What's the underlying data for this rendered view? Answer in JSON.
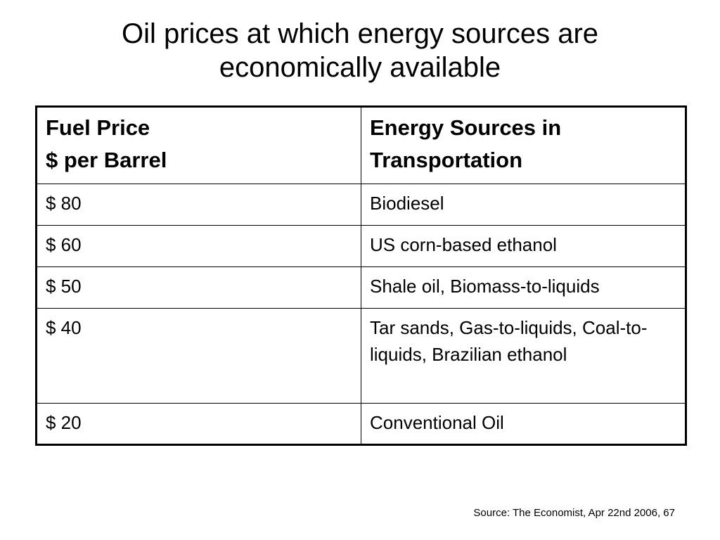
{
  "title": {
    "line1": "Oil prices at which energy sources are",
    "line2": "economically available"
  },
  "table": {
    "headers": {
      "price_line1": "Fuel Price",
      "price_line2": "$ per Barrel",
      "sources": "Energy Sources in Transportation"
    },
    "rows": [
      {
        "price": "$ 80",
        "sources": "Biodiesel"
      },
      {
        "price": "$ 60",
        "sources": "US corn-based ethanol"
      },
      {
        "price": "$ 50",
        "sources": "Shale oil, Biomass-to-liquids"
      },
      {
        "price": "$ 40",
        "sources": "Tar sands, Gas-to-liquids, Coal-to-liquids, Brazilian ethanol"
      },
      {
        "price": "$ 20",
        "sources": "Conventional Oil"
      }
    ]
  },
  "source": "Source: The Economist, Apr 22nd 2006, 67"
}
